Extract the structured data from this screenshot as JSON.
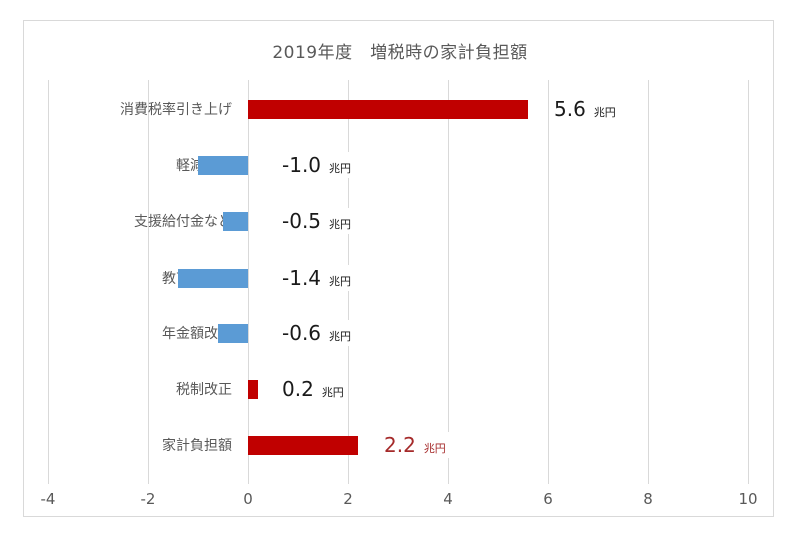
{
  "chart_data": {
    "type": "bar",
    "orientation": "horizontal",
    "title": "2019年度　増税時の家計負担額",
    "xlabel": "",
    "ylabel": "",
    "xlim": [
      -4,
      10
    ],
    "x_ticks": [
      "-4",
      "-2",
      "0",
      "2",
      "4",
      "6",
      "8",
      "10"
    ],
    "grid": true,
    "legend": null,
    "unit": "兆円",
    "categories": [
      "消費税率引き上げ",
      "軽減税率",
      "支援給付金など",
      "教育無償化",
      "年金額改定",
      "税制改正",
      "家計負担額"
    ],
    "values": [
      5.6,
      -1.0,
      -0.5,
      -1.4,
      -0.6,
      0.2,
      2.2
    ],
    "value_labels": [
      "5.6",
      "-1.0",
      "-0.5",
      "-1.4",
      "-0.6",
      "0.2",
      "2.2"
    ],
    "colors": {
      "positive": "#C00000",
      "negative": "#5B9BD5",
      "total_label": "#A52A2A"
    }
  }
}
